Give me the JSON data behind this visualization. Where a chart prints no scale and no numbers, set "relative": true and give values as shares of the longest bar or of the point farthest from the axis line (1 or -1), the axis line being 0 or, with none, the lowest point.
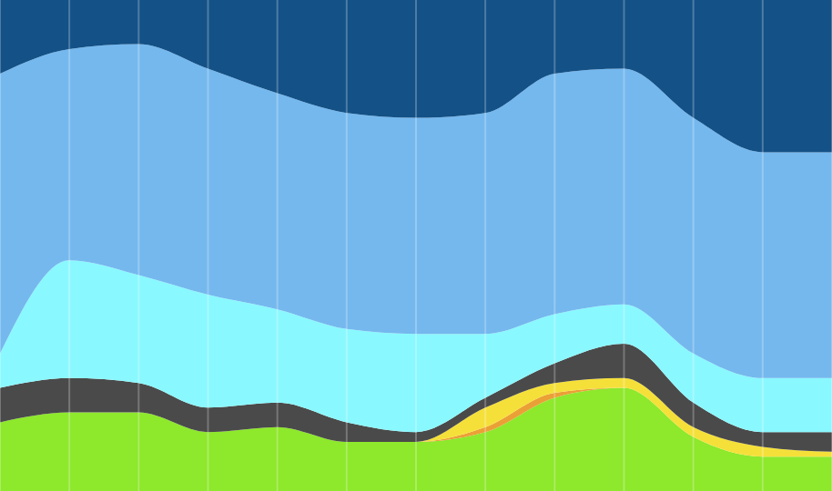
{
  "chart_data": {
    "type": "area",
    "stacked": true,
    "relative": true,
    "grid": "x",
    "categories": [
      null,
      null,
      null,
      null,
      null,
      null,
      null,
      null,
      null,
      null,
      null,
      null,
      null
    ],
    "series": [
      {
        "color": "#8ee82c",
        "values": [
          0.14,
          0.16,
          0.16,
          0.12,
          0.13,
          0.1,
          0.1,
          0.12,
          0.19,
          0.21,
          0.11,
          0.07,
          0.07
        ]
      },
      {
        "color": "#eba035",
        "values": [
          0,
          0,
          0,
          0,
          0,
          0,
          0,
          0.01,
          0.01,
          0,
          0,
          0,
          0
        ]
      },
      {
        "color": "#f5e03a",
        "values": [
          0,
          0,
          0,
          0,
          0,
          0,
          0,
          0.04,
          0.02,
          0.02,
          0.02,
          0.02,
          0.01
        ]
      },
      {
        "color": "#4a4a4a",
        "values": [
          0.07,
          0.07,
          0.06,
          0.05,
          0.05,
          0.04,
          0.02,
          0.02,
          0.04,
          0.07,
          0.05,
          0.03,
          0.04
        ]
      },
      {
        "color": "#8af8ff",
        "values": [
          0.07,
          0.24,
          0.22,
          0.23,
          0.19,
          0.19,
          0.2,
          0.13,
          0.1,
          0.08,
          0.1,
          0.11,
          0.11
        ]
      },
      {
        "color": "#74b8ee",
        "values": [
          0.57,
          0.43,
          0.47,
          0.46,
          0.44,
          0.44,
          0.44,
          0.45,
          0.49,
          0.48,
          0.48,
          0.46,
          0.46
        ]
      },
      {
        "color": "#135187",
        "values": [
          0.15,
          0.1,
          0.09,
          0.14,
          0.19,
          0.23,
          0.24,
          0.23,
          0.15,
          0.14,
          0.24,
          0.31,
          0.31
        ]
      }
    ]
  }
}
